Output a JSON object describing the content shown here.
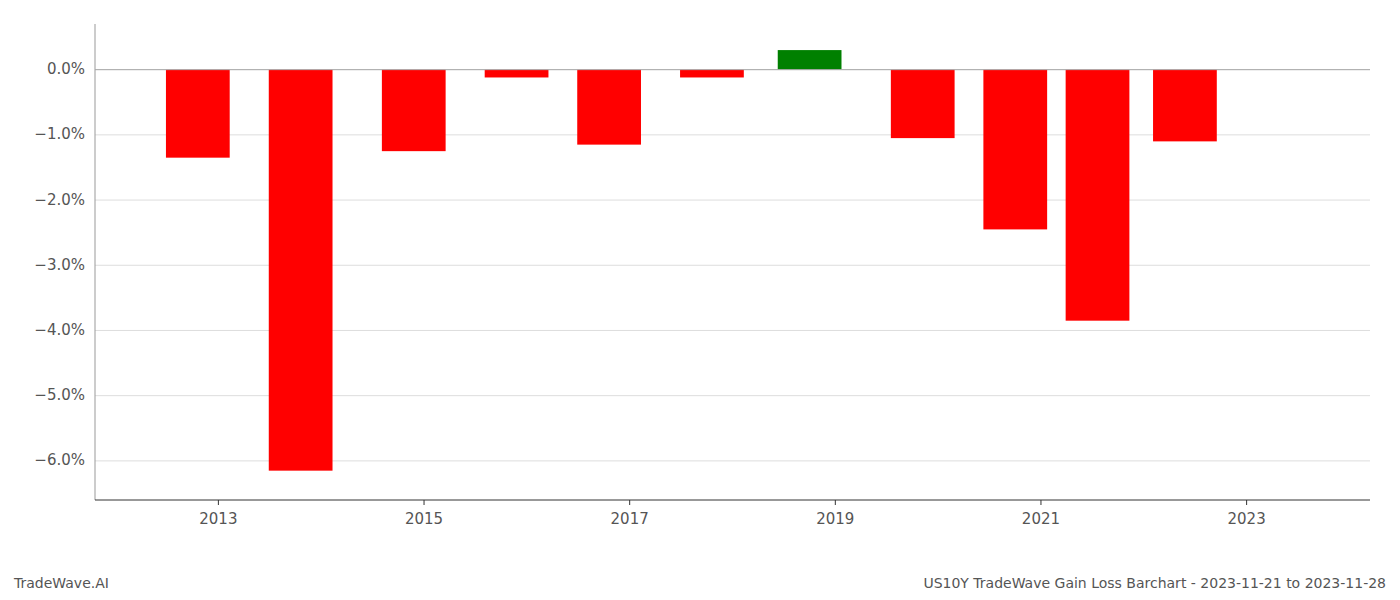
{
  "chart_data": {
    "type": "bar",
    "x": [
      2012.8,
      2013.8,
      2014.9,
      2015.9,
      2016.8,
      2017.8,
      2018.75,
      2019.85,
      2020.75,
      2021.55,
      2022.4
    ],
    "values": [
      -1.35,
      -6.15,
      -1.25,
      -0.12,
      -1.15,
      -0.12,
      0.3,
      -1.05,
      -2.45,
      -3.85,
      -1.1
    ],
    "colors": [
      "#ff0000",
      "#ff0000",
      "#ff0000",
      "#ff0000",
      "#ff0000",
      "#ff0000",
      "#008000",
      "#ff0000",
      "#ff0000",
      "#ff0000",
      "#ff0000"
    ],
    "xlim": [
      2011.8,
      2024.2
    ],
    "ylim": [
      -6.6,
      0.7
    ],
    "xticks": [
      2013,
      2015,
      2017,
      2019,
      2021,
      2023
    ],
    "yticks": [
      {
        "value": 0.0,
        "label": "0.0%"
      },
      {
        "value": -1.0,
        "label": "−1.0%"
      },
      {
        "value": -2.0,
        "label": "−2.0%"
      },
      {
        "value": -3.0,
        "label": "−3.0%"
      },
      {
        "value": -4.0,
        "label": "−4.0%"
      },
      {
        "value": -5.0,
        "label": "−5.0%"
      },
      {
        "value": -6.0,
        "label": "−6.0%"
      }
    ],
    "grid": true,
    "annotations": [
      "TradeWave.AI",
      "US10Y TradeWave Gain Loss Barchart - 2023-11-21 to 2023-11-28"
    ]
  }
}
